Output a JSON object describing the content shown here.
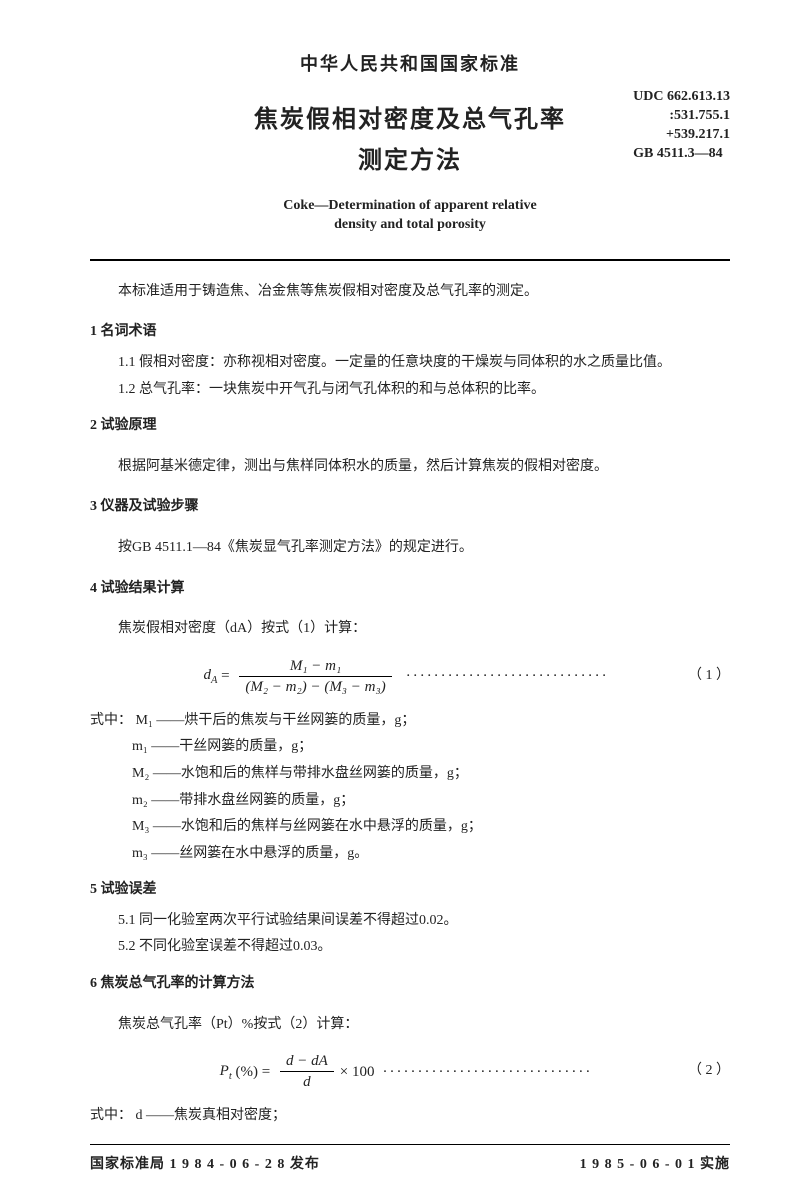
{
  "header": {
    "country_title": "中华人民共和国国家标准",
    "main_title_line1": "焦炭假相对密度及总气孔率",
    "main_title_line2": "测定方法",
    "en_title_line1": "Coke—Determination of apparent relative",
    "en_title_line2": "density and total porosity",
    "udc_line1": "UDC 662.613.13",
    "udc_line2": ":531.755.1",
    "udc_line3": "+539.217.1",
    "gb_code": "GB 4511.3—84"
  },
  "intro": "本标准适用于铸造焦、冶金焦等焦炭假相对密度及总气孔率的测定。",
  "s1": {
    "title": "1  名词术语",
    "i1": "1.1  假相对密度：亦称视相对密度。一定量的任意块度的干燥炭与同体积的水之质量比值。",
    "i2": "1.2  总气孔率：一块焦炭中开气孔与闭气孔体积的和与总体积的比率。"
  },
  "s2": {
    "title": "2  试验原理",
    "p": "根据阿基米德定律，测出与焦样同体积水的质量，然后计算焦炭的假相对密度。"
  },
  "s3": {
    "title": "3  仪器及试验步骤",
    "p": "按GB 4511.1—84《焦炭显气孔率测定方法》的规定进行。"
  },
  "s4": {
    "title": "4  试验结果计算",
    "p": "焦炭假相对密度（dA）按式（1）计算：",
    "eq_lhs": "d",
    "eq_lhs_sub": "A",
    "eq_num_top": "M₁ − m₁",
    "eq_num_bot": "(M₂ − m₂) − (M₃ − m₃)",
    "eq_no": "（ 1 ）",
    "where_intro": "式中：",
    "w1": "M₁ ——烘干后的焦炭与干丝网篓的质量，g；",
    "w2": "m₁ ——干丝网篓的质量，g；",
    "w3": "M₂ ——水饱和后的焦样与带排水盘丝网篓的质量，g；",
    "w4": "m₂ ——带排水盘丝网篓的质量，g；",
    "w5": "M₃ ——水饱和后的焦样与丝网篓在水中悬浮的质量，g；",
    "w6": "m₃ ——丝网篓在水中悬浮的质量，g。"
  },
  "s5": {
    "title": "5  试验误差",
    "i1": "5.1  同一化验室两次平行试验结果间误差不得超过0.02。",
    "i2": "5.2  不同化验室误差不得超过0.03。"
  },
  "s6": {
    "title": "6  焦炭总气孔率的计算方法",
    "p": "焦炭总气孔率（Pt）%按式（2）计算：",
    "eq_lhs": "P",
    "eq_lhs_sub": "t",
    "eq_unit": "(%)",
    "eq_num_top": "d − dA",
    "eq_num_bot": "d",
    "eq_tail": " × 100",
    "eq_no": "（ 2 ）",
    "where_intro": "式中：",
    "w1": "d ——焦炭真相对密度；"
  },
  "footer": {
    "left": "国家标准局 1 9 8 4 - 0 6 - 2 8 发布",
    "right": "1 9 8 5 - 0 6 - 0 1 实施"
  }
}
